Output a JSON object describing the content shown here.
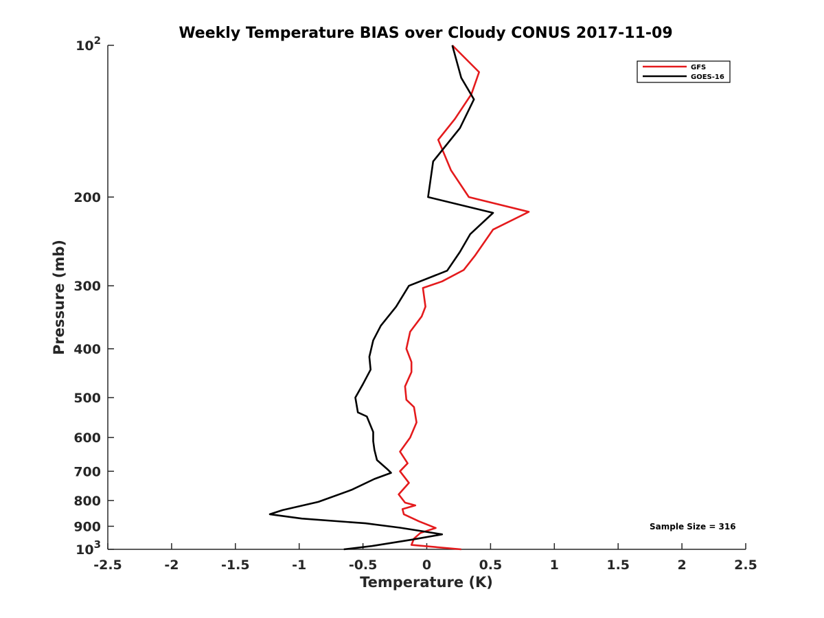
{
  "chart_data": {
    "type": "line",
    "title": "Weekly Temperature BIAS over Cloudy CONUS 2017-11-09",
    "xlabel": "Temperature (K)",
    "ylabel": "Pressure (mb)",
    "xlim": [
      -2.5,
      2.5
    ],
    "ylim": [
      1000,
      100
    ],
    "y_scale": "log",
    "y_reversed": true,
    "x_ticks": [
      "-2.5",
      "-2",
      "-1.5",
      "-1",
      "-0.5",
      "0",
      "0.5",
      "1",
      "1.5",
      "2",
      "2.5"
    ],
    "x_tick_values": [
      -2.5,
      -2,
      -1.5,
      -1,
      -0.5,
      0,
      0.5,
      1,
      1.5,
      2,
      2.5
    ],
    "y_ticks": [
      {
        "value": 100,
        "label": "10",
        "sup": "2"
      },
      {
        "value": 200,
        "label": "200"
      },
      {
        "value": 300,
        "label": "300"
      },
      {
        "value": 400,
        "label": "400"
      },
      {
        "value": 500,
        "label": "500"
      },
      {
        "value": 600,
        "label": "600"
      },
      {
        "value": 700,
        "label": "700"
      },
      {
        "value": 800,
        "label": "800"
      },
      {
        "value": 900,
        "label": "900"
      },
      {
        "value": 1000,
        "label": "10",
        "sup": "3"
      }
    ],
    "grid": false,
    "legend_position": "top-right",
    "annotation": "Sample Size = 316",
    "series": [
      {
        "name": "GFS",
        "color": "#e41a1c",
        "points": [
          [
            0.2,
            100
          ],
          [
            0.41,
            113
          ],
          [
            0.35,
            125
          ],
          [
            0.22,
            140
          ],
          [
            0.09,
            154
          ],
          [
            0.19,
            177
          ],
          [
            0.33,
            200
          ],
          [
            0.8,
            214
          ],
          [
            0.52,
            232
          ],
          [
            0.38,
            261
          ],
          [
            0.29,
            279
          ],
          [
            0.12,
            294
          ],
          [
            -0.03,
            303
          ],
          [
            -0.01,
            330
          ],
          [
            -0.04,
            345
          ],
          [
            -0.13,
            370
          ],
          [
            -0.16,
            400
          ],
          [
            -0.12,
            425
          ],
          [
            -0.12,
            445
          ],
          [
            -0.17,
            475
          ],
          [
            -0.16,
            505
          ],
          [
            -0.1,
            522
          ],
          [
            -0.08,
            560
          ],
          [
            -0.13,
            600
          ],
          [
            -0.21,
            640
          ],
          [
            -0.15,
            675
          ],
          [
            -0.21,
            700
          ],
          [
            -0.14,
            738
          ],
          [
            -0.22,
            778
          ],
          [
            -0.17,
            808
          ],
          [
            -0.09,
            818
          ],
          [
            -0.19,
            832
          ],
          [
            -0.18,
            852
          ],
          [
            -0.06,
            880
          ],
          [
            0.07,
            907
          ],
          [
            -0.05,
            928
          ],
          [
            -0.1,
            952
          ],
          [
            -0.12,
            980
          ],
          [
            0.27,
            1000
          ]
        ]
      },
      {
        "name": "GOES-16",
        "color": "#000000",
        "points": [
          [
            0.2,
            100
          ],
          [
            0.27,
            116
          ],
          [
            0.37,
            128
          ],
          [
            0.26,
            146
          ],
          [
            0.05,
            170
          ],
          [
            0.01,
            200
          ],
          [
            0.52,
            215
          ],
          [
            0.34,
            237
          ],
          [
            0.26,
            257
          ],
          [
            0.16,
            280
          ],
          [
            -0.14,
            300
          ],
          [
            -0.24,
            330
          ],
          [
            -0.36,
            360
          ],
          [
            -0.42,
            385
          ],
          [
            -0.45,
            415
          ],
          [
            -0.44,
            440
          ],
          [
            -0.5,
            470
          ],
          [
            -0.56,
            500
          ],
          [
            -0.54,
            535
          ],
          [
            -0.47,
            545
          ],
          [
            -0.42,
            585
          ],
          [
            -0.42,
            610
          ],
          [
            -0.41,
            635
          ],
          [
            -0.39,
            665
          ],
          [
            -0.31,
            693
          ],
          [
            -0.28,
            705
          ],
          [
            -0.41,
            725
          ],
          [
            -0.59,
            762
          ],
          [
            -0.85,
            805
          ],
          [
            -1.13,
            836
          ],
          [
            -1.23,
            852
          ],
          [
            -0.98,
            869
          ],
          [
            -0.48,
            888
          ],
          [
            -0.21,
            906
          ],
          [
            0.12,
            934
          ],
          [
            -0.11,
            956
          ],
          [
            -0.43,
            985
          ],
          [
            -0.65,
            1000
          ]
        ]
      }
    ]
  }
}
